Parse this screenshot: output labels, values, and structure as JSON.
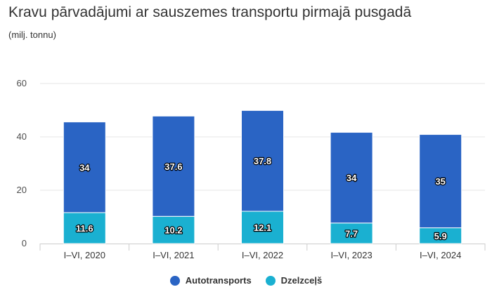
{
  "chart_data": {
    "type": "bar",
    "stacked": true,
    "title": "Kravu pārvadājumi ar sauszemes transportu pirmajā pusgadā",
    "subtitle": "(milj. tonnu)",
    "categories": [
      "I–VI, 2020",
      "I–VI, 2021",
      "I–VI, 2022",
      "I–VI, 2023",
      "I–VI, 2024"
    ],
    "series": [
      {
        "name": "Dzelzceļš",
        "color": "#1ab0d1",
        "values": [
          11.6,
          10.2,
          12.1,
          7.7,
          5.9
        ]
      },
      {
        "name": "Autotransports",
        "color": "#2a64c4",
        "values": [
          34,
          37.6,
          37.8,
          34,
          35
        ]
      }
    ],
    "ylim": [
      0,
      60
    ],
    "yticks": [
      0,
      20,
      40,
      60
    ],
    "grid": true,
    "legend_position": "bottom-center"
  }
}
